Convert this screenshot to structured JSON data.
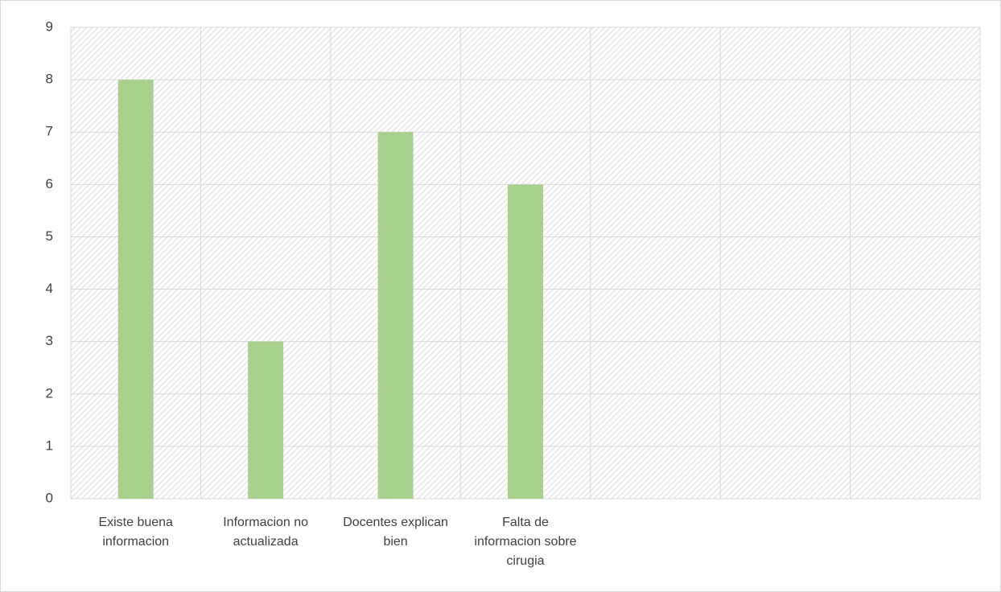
{
  "chart_data": {
    "type": "bar",
    "categories": [
      "Existe buena informacion",
      "Informacion no actualizada",
      "Docentes explican bien",
      "Falta de informacion sobre cirugia",
      null,
      null,
      null
    ],
    "values": [
      8,
      3,
      7,
      6,
      null,
      null,
      null
    ],
    "color": "#a9d18e",
    "ylim": [
      0,
      9
    ],
    "yticks": [
      0,
      1,
      2,
      3,
      4,
      5,
      6,
      7,
      8,
      9
    ],
    "grid": true
  }
}
